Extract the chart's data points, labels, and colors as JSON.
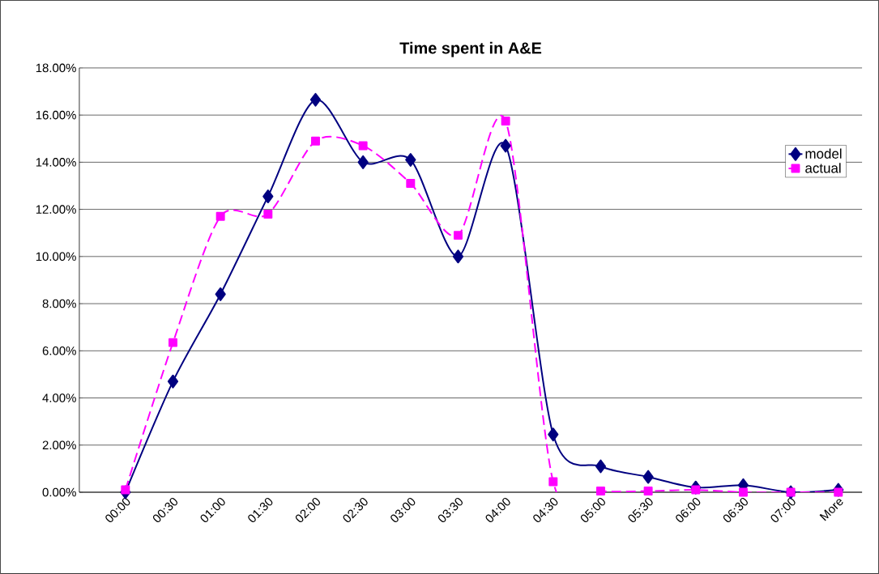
{
  "chart_data": {
    "type": "line",
    "title": "Time spent in A&E",
    "categories": [
      "00:00",
      "00:30",
      "01:00",
      "01:30",
      "02:00",
      "02:30",
      "03:00",
      "03:30",
      "04:00",
      "04:30",
      "05:00",
      "05:30",
      "06:00",
      "06:30",
      "07:00",
      "More"
    ],
    "series": [
      {
        "name": "model",
        "color": "#000080",
        "marker": "diamond",
        "line_style": "solid",
        "values": [
          0,
          4.7,
          8.4,
          12.55,
          16.65,
          14.0,
          14.1,
          10.0,
          14.7,
          2.45,
          1.1,
          0.65,
          0.2,
          0.3,
          0.0,
          0.1
        ]
      },
      {
        "name": "actual",
        "color": "#ff00ff",
        "marker": "square",
        "line_style": "dashed",
        "values": [
          0.1,
          6.35,
          11.7,
          11.8,
          14.9,
          14.7,
          13.1,
          10.9,
          15.75,
          0.45,
          0.05,
          0.05,
          0.1,
          0.0,
          0.0,
          0.0
        ]
      }
    ],
    "ylim": [
      0,
      18
    ],
    "yticks": [
      {
        "value": 0,
        "label": "0.00%"
      },
      {
        "value": 2,
        "label": "2.00%"
      },
      {
        "value": 4,
        "label": "4.00%"
      },
      {
        "value": 6,
        "label": "6.00%"
      },
      {
        "value": 8,
        "label": "8.00%"
      },
      {
        "value": 10,
        "label": "10.00%"
      },
      {
        "value": 12,
        "label": "12.00%"
      },
      {
        "value": 14,
        "label": "14.00%"
      },
      {
        "value": 16,
        "label": "16.00%"
      },
      {
        "value": 18,
        "label": "18.00%"
      }
    ],
    "grid": "y",
    "legend": "right"
  }
}
